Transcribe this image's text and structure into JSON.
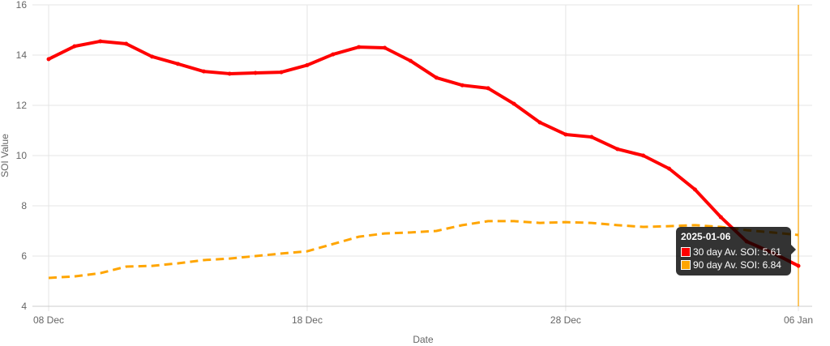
{
  "chart_data": {
    "type": "line",
    "title": "",
    "xlabel": "Date",
    "ylabel": "SOI Value",
    "ylim": [
      4,
      16
    ],
    "yticks": [
      "4",
      "6",
      "8",
      "10",
      "12",
      "14",
      "16"
    ],
    "x_tick_labels": [
      {
        "index": 0,
        "label": "08 Dec"
      },
      {
        "index": 10,
        "label": "18 Dec"
      },
      {
        "index": 20,
        "label": "28 Dec"
      },
      {
        "index": 29,
        "label": "06 Jan"
      }
    ],
    "x": [
      "2024-12-08",
      "2024-12-09",
      "2024-12-10",
      "2024-12-11",
      "2024-12-12",
      "2024-12-13",
      "2024-12-14",
      "2024-12-15",
      "2024-12-16",
      "2024-12-17",
      "2024-12-18",
      "2024-12-19",
      "2024-12-20",
      "2024-12-21",
      "2024-12-22",
      "2024-12-23",
      "2024-12-24",
      "2024-12-25",
      "2024-12-26",
      "2024-12-27",
      "2024-12-28",
      "2024-12-29",
      "2024-12-30",
      "2024-12-31",
      "2025-01-01",
      "2025-01-02",
      "2025-01-03",
      "2025-01-04",
      "2025-01-05",
      "2025-01-06"
    ],
    "grid": true,
    "series": [
      {
        "name": "30 day Av. SOI",
        "color": "#ff0000",
        "dashed": false,
        "values": [
          13.84,
          14.35,
          14.55,
          14.45,
          13.94,
          13.65,
          13.35,
          13.26,
          13.29,
          13.32,
          13.6,
          14.03,
          14.32,
          14.29,
          13.77,
          13.1,
          12.8,
          12.68,
          12.06,
          11.32,
          10.84,
          10.74,
          10.26,
          10.0,
          9.48,
          8.65,
          7.55,
          6.58,
          6.13,
          5.61
        ]
      },
      {
        "name": "90 day Av. SOI",
        "color": "#ffa500",
        "dashed": true,
        "values": [
          5.13,
          5.19,
          5.32,
          5.58,
          5.61,
          5.71,
          5.84,
          5.9,
          6.0,
          6.1,
          6.19,
          6.48,
          6.77,
          6.9,
          6.94,
          7.0,
          7.23,
          7.39,
          7.39,
          7.32,
          7.35,
          7.32,
          7.23,
          7.16,
          7.19,
          7.23,
          7.16,
          7.03,
          6.94,
          6.84
        ]
      }
    ],
    "tooltip": {
      "title": "2025-01-06",
      "rows": [
        "30 day Av. SOI: 5.61",
        "90 day Av. SOI: 6.84"
      ]
    },
    "hover_index": 29
  }
}
